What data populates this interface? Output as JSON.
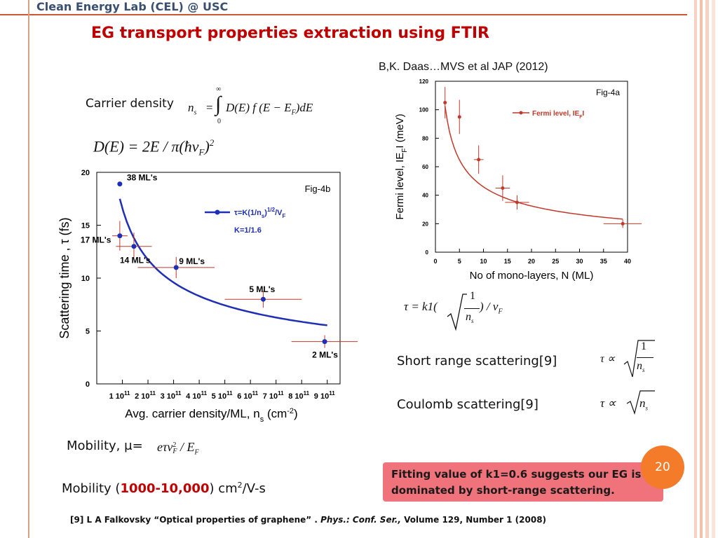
{
  "slide": {
    "header": "Clean Energy Lab (CEL) @ USC",
    "title": "EG transport properties extraction using FTIR",
    "citation_top": "B,K. Daas…MVS et al JAP (2012)",
    "carrier_density_label": "Carrier density",
    "mobility_label": "Mobility, μ=",
    "mobility_range_prefix": "Mobility (",
    "mobility_range_value": "1000-10,000",
    "mobility_range_suffix": ") cm",
    "mobility_range_sup": "2",
    "mobility_range_unit": "/V-s",
    "short_range_label": "Short range scattering[9]",
    "coulomb_label": "Coulomb scattering[9]",
    "callout_text": "Fitting value of k1=0.6 suggests our EG is dominated by short-range scattering.",
    "page_number": "20",
    "reference": {
      "prefix": "[9] L A Falkovsky “Optical properties of graphene” . ",
      "journal": "Phys.: Conf. Ser.,",
      "suffix": " Volume 129, Number 1 (2008)"
    },
    "colors": {
      "accent": "#c00000",
      "badge": "#f47b2a",
      "callout": "#f0727a",
      "header_text": "#3a4f6f"
    }
  },
  "equations": {
    "ns": {
      "lhs": "n",
      "lhs_sub": "s",
      "eq": "=",
      "upper": "∞",
      "lower": "0",
      "integral": "∫",
      "body": "D(E) f (E − E",
      "body_sub": "F",
      "body_end": ")dE"
    },
    "de": {
      "text": "D(E) = 2E / π(ħv",
      "sub": "F",
      "end": ")",
      "sup": "2"
    },
    "mobility": {
      "text": "eτv",
      "sup": "2",
      "sub": "F",
      "mid": " / E",
      "sub2": "F"
    },
    "tau": {
      "lhs": "τ = k1(",
      "num": "1",
      "den": "n",
      "den_sub": "s",
      "end": ") / v",
      "end_sub": "F"
    },
    "short": {
      "lhs": "τ ∝",
      "num": "1",
      "den": "n",
      "den_sub": "s"
    },
    "coulomb": {
      "lhs": "τ ∝",
      "rad": "n",
      "rad_sub": "s"
    }
  },
  "chart_data": [
    {
      "type": "scatter",
      "fig_label": "Fig-4b",
      "ylabel": "Scattering time , τ (fs)",
      "xlabel": "Avg. carrier density/ML, n",
      "xlabel_sub": "s",
      "xlabel_unit": "(cm",
      "xlabel_unit_sup": "-2",
      "xlabel_unit_end": ")",
      "xlim": [
        0,
        9.5
      ],
      "ylim": [
        0,
        20
      ],
      "yticks": [
        "0",
        "5",
        "10",
        "15",
        "20"
      ],
      "xticks": [
        "1 10",
        "2 10",
        "3 10",
        "4 10",
        "5 10",
        "6 10",
        "7 10",
        "8 10",
        "9 10"
      ],
      "xtick_values": [
        1,
        2,
        3,
        4,
        5,
        6,
        7,
        8,
        9
      ],
      "xtick_sup": "11",
      "legend": {
        "text": "τ=K(1/n",
        "sub": "s",
        "sup": ")",
        "sup2": "1/2",
        "end": "/V",
        "end_sub": "F",
        "k": "K=1/1.6"
      },
      "points": [
        {
          "label": "38 ML's",
          "x": 0.9,
          "y": 18.9,
          "xerr": 0,
          "yerr": 0
        },
        {
          "label": "17 ML's",
          "x": 0.9,
          "y": 14.0,
          "xerr": 0.3,
          "yerr": 1.4
        },
        {
          "label": "14 ML's",
          "x": 1.45,
          "y": 13.0,
          "xerr": 0.7,
          "yerr": 1.3
        },
        {
          "label": "9 ML's",
          "x": 3.1,
          "y": 11.0,
          "xerr": 1.5,
          "yerr": 1.0
        },
        {
          "label": "5 ML's",
          "x": 6.5,
          "y": 8.0,
          "xerr": 1.5,
          "yerr": 0.8
        },
        {
          "label": "2 ML's",
          "x": 8.9,
          "y": 4.0,
          "xerr": 1.3,
          "yerr": 0.6
        }
      ],
      "fit": {
        "k": 0.625,
        "x": [
          0.9,
          9.0
        ],
        "y": [
          17.5,
          5.6
        ]
      }
    },
    {
      "type": "scatter",
      "fig_label": "Fig-4a",
      "ylabel": "Fermi level, IE",
      "ylabel_sub": "F",
      "ylabel_end": "I (meV)",
      "xlabel": "No of mono-layers, N (ML)",
      "xlim": [
        0,
        40
      ],
      "ylim": [
        0,
        120
      ],
      "xticks": [
        "0",
        "5",
        "10",
        "15",
        "20",
        "25",
        "30",
        "35",
        "40"
      ],
      "yticks": [
        "0",
        "20",
        "40",
        "60",
        "80",
        "100",
        "120"
      ],
      "legend": {
        "text": "Fermi level, IE",
        "sub": "F",
        "end": "I"
      },
      "points": [
        {
          "x": 2,
          "y": 105,
          "xerr": 0,
          "yerr": 11
        },
        {
          "x": 5,
          "y": 95,
          "xerr": 0,
          "yerr": 12
        },
        {
          "x": 9,
          "y": 65,
          "xerr": 1,
          "yerr": 10
        },
        {
          "x": 14,
          "y": 45,
          "xerr": 1.5,
          "yerr": 9
        },
        {
          "x": 17,
          "y": 35,
          "xerr": 2.5,
          "yerr": 5
        },
        {
          "x": 39,
          "y": 20,
          "xerr": 4,
          "yerr": 3
        }
      ],
      "fit": {
        "a": 145,
        "x": [
          2,
          39
        ],
        "y": [
          120,
          23
        ]
      }
    }
  ]
}
